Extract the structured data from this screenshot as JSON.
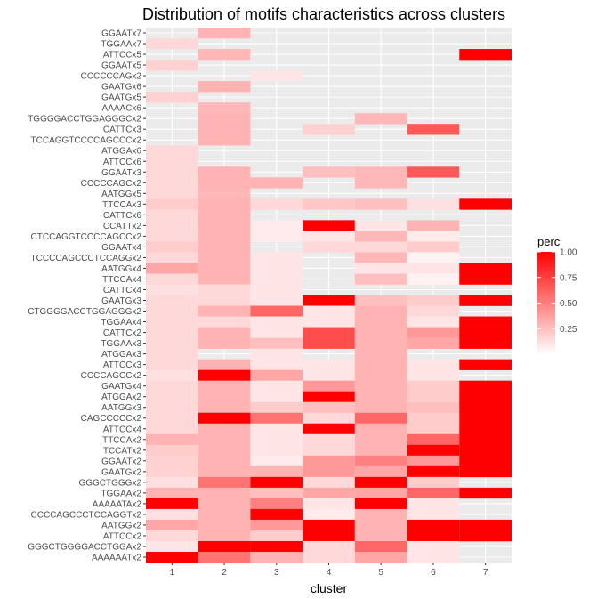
{
  "chart_data": {
    "type": "heatmap",
    "title": "Distribution of motifs characteristics across clusters",
    "xlabel": "cluster",
    "ylabel": "",
    "x_categories": [
      "1",
      "2",
      "3",
      "4",
      "5",
      "6",
      "7"
    ],
    "y_categories": [
      "GGAATx7",
      "TGGAAx7",
      "ATTCCx5",
      "GGAATx5",
      "CCCCCCAGx2",
      "GAATGx6",
      "GAATGx5",
      "AAAACx6",
      "TGGGGACCTGGAGGGCx2",
      "CATTCx3",
      "TCCAGGTCCCCAGCCCx2",
      "ATGGAx6",
      "ATTCCx6",
      "GGAATx3",
      "CCCCCAGCx2",
      "AATGGx5",
      "TTCCAx3",
      "CATTCx6",
      "CCATTx2",
      "CTCCAGGTCCCCAGCCx2",
      "GGAATx4",
      "TCCCCAGCCCTCCAGGx2",
      "AATGGx4",
      "TTCCAx4",
      "CATTCx4",
      "GAATGx3",
      "CTGGGGACCTGGAGGGx2",
      "TGGAAx4",
      "CATTCx2",
      "TGGAAx3",
      "ATGGAx3",
      "ATTCCx3",
      "CCCCAGCCx2",
      "GAATGx4",
      "ATGGAx2",
      "AATGGx3",
      "CAGCCCCCx2",
      "ATTCCx4",
      "TTCCAx2",
      "TCCATx2",
      "GGAATx2",
      "GAATGx2",
      "GGGCTGGGx2",
      "TGGAAx2",
      "AAAAATAx2",
      "CCCCAGCCCTCCAGGTx2",
      "AATGGx2",
      "ATTCCx2",
      "GGGCTGGGGACCTGGAx2",
      "AAAAAATx2"
    ],
    "values": [
      [
        null,
        0.3,
        null,
        null,
        null,
        null,
        null
      ],
      [
        0.15,
        null,
        null,
        null,
        null,
        null,
        null
      ],
      [
        null,
        0.28,
        null,
        null,
        null,
        null,
        1.0
      ],
      [
        0.18,
        null,
        null,
        null,
        null,
        null,
        null
      ],
      [
        null,
        null,
        0.1,
        null,
        null,
        null,
        null
      ],
      [
        null,
        0.3,
        null,
        null,
        null,
        null,
        null
      ],
      [
        0.18,
        null,
        null,
        null,
        null,
        null,
        null
      ],
      [
        null,
        0.28,
        null,
        null,
        null,
        null,
        null
      ],
      [
        null,
        0.3,
        null,
        null,
        0.28,
        null,
        null
      ],
      [
        null,
        0.3,
        null,
        0.18,
        null,
        0.65,
        null
      ],
      [
        null,
        0.3,
        null,
        null,
        null,
        null,
        null
      ],
      [
        0.15,
        null,
        null,
        null,
        null,
        null,
        null
      ],
      [
        0.15,
        null,
        null,
        null,
        null,
        null,
        null
      ],
      [
        0.15,
        0.3,
        null,
        0.25,
        0.28,
        0.65,
        null
      ],
      [
        0.15,
        0.3,
        0.3,
        null,
        0.28,
        null,
        null
      ],
      [
        0.15,
        0.28,
        null,
        null,
        null,
        null,
        null
      ],
      [
        0.2,
        0.3,
        0.15,
        0.22,
        0.25,
        0.12,
        1.0
      ],
      [
        0.15,
        0.3,
        null,
        null,
        null,
        null,
        null
      ],
      [
        0.15,
        0.3,
        0.08,
        1.0,
        0.1,
        0.3,
        null
      ],
      [
        0.15,
        0.3,
        0.08,
        0.1,
        0.28,
        0.08,
        null
      ],
      [
        0.2,
        0.3,
        null,
        0.15,
        0.15,
        0.2,
        null
      ],
      [
        0.15,
        0.3,
        0.1,
        null,
        0.28,
        0.05,
        null
      ],
      [
        0.35,
        0.3,
        0.1,
        null,
        0.1,
        0.1,
        1.0
      ],
      [
        0.15,
        0.3,
        0.1,
        null,
        0.25,
        0.05,
        1.0
      ],
      [
        0.12,
        0.15,
        0.1,
        null,
        null,
        null,
        null
      ],
      [
        0.15,
        0.15,
        0.1,
        1.0,
        0.25,
        0.2,
        1.0
      ],
      [
        0.15,
        0.3,
        0.6,
        0.1,
        0.3,
        0.15,
        null
      ],
      [
        0.15,
        0.15,
        0.1,
        0.1,
        0.3,
        0.1,
        1.0
      ],
      [
        0.15,
        0.3,
        0.1,
        0.7,
        0.3,
        0.4,
        1.0
      ],
      [
        0.15,
        0.3,
        0.25,
        0.7,
        0.3,
        0.35,
        1.0
      ],
      [
        0.15,
        null,
        0.1,
        null,
        0.3,
        null,
        null
      ],
      [
        0.15,
        0.3,
        0.1,
        0.1,
        0.3,
        0.1,
        1.0
      ],
      [
        0.12,
        1.0,
        0.35,
        0.1,
        0.3,
        0.1,
        null
      ],
      [
        0.15,
        0.3,
        0.1,
        0.4,
        0.3,
        0.2,
        1.0
      ],
      [
        0.15,
        0.3,
        0.1,
        1.0,
        0.3,
        0.2,
        1.0
      ],
      [
        0.15,
        0.3,
        0.2,
        0.25,
        0.3,
        0.25,
        1.0
      ],
      [
        0.15,
        1.0,
        0.55,
        0.15,
        0.6,
        0.2,
        1.0
      ],
      [
        0.15,
        0.3,
        0.1,
        1.0,
        0.3,
        0.2,
        1.0
      ],
      [
        0.3,
        0.3,
        0.1,
        0.15,
        0.3,
        0.6,
        1.0
      ],
      [
        0.2,
        0.3,
        0.1,
        0.15,
        0.3,
        1.0,
        1.0
      ],
      [
        0.18,
        0.3,
        0.08,
        0.4,
        0.5,
        0.4,
        1.0
      ],
      [
        0.18,
        0.3,
        0.3,
        0.4,
        0.35,
        1.0,
        1.0
      ],
      [
        0.12,
        0.55,
        1.0,
        0.15,
        1.0,
        0.2,
        null
      ],
      [
        0.3,
        0.3,
        0.25,
        0.35,
        0.35,
        0.6,
        1.0
      ],
      [
        1.0,
        0.3,
        0.5,
        0.1,
        1.0,
        0.1,
        null
      ],
      [
        0.12,
        0.3,
        1.0,
        0.08,
        0.3,
        0.1,
        null
      ],
      [
        0.35,
        0.3,
        0.4,
        1.0,
        0.3,
        1.0,
        1.0
      ],
      [
        0.15,
        0.3,
        0.2,
        1.0,
        0.3,
        1.0,
        1.0
      ],
      [
        0.1,
        1.0,
        1.0,
        0.15,
        0.6,
        0.1,
        null
      ],
      [
        1.0,
        0.55,
        0.3,
        0.15,
        0.35,
        0.1,
        null
      ]
    ],
    "color_range": [
      0,
      1
    ],
    "colors": {
      "low": "#ffffff",
      "high": "#ff0000",
      "panel": "#ebebeb",
      "grid": "#ffffff"
    },
    "legend": {
      "title": "perc",
      "ticks": [
        "0.25",
        "0.50",
        "0.75",
        "1.00"
      ],
      "tick_values": [
        0.25,
        0.5,
        0.75,
        1.0
      ],
      "position": "right"
    }
  }
}
